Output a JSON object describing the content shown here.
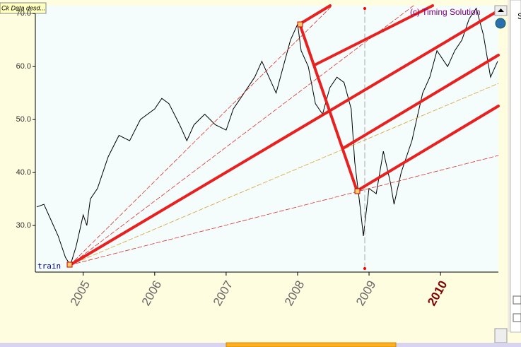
{
  "ui": {
    "tab": "Ck Data desd...",
    "side_letter": "S"
  },
  "chart_data": {
    "type": "line",
    "annotations": [
      "(c) Timing Solution",
      "train"
    ],
    "x": [
      2004.35,
      2004.45,
      2004.55,
      2004.65,
      2004.75,
      2004.82,
      2004.9,
      2004.95,
      2005.0,
      2005.05,
      2005.1,
      2005.2,
      2005.35,
      2005.5,
      2005.65,
      2005.8,
      2006.0,
      2006.1,
      2006.2,
      2006.35,
      2006.45,
      2006.55,
      2006.7,
      2006.85,
      2007.0,
      2007.1,
      2007.25,
      2007.4,
      2007.5,
      2007.6,
      2007.7,
      2007.8,
      2007.9,
      2008.0,
      2008.05,
      2008.15,
      2008.25,
      2008.35,
      2008.45,
      2008.55,
      2008.65,
      2008.75,
      2008.8,
      2008.88,
      2008.92,
      2009.0,
      2009.1,
      2009.2,
      2009.3,
      2009.35,
      2009.45,
      2009.55,
      2009.6,
      2009.65,
      2009.75,
      2009.85,
      2009.95,
      2010.1,
      2010.2,
      2010.3,
      2010.4,
      2010.5,
      2010.6,
      2010.7,
      2010.8
    ],
    "series": [
      {
        "color": "#000000",
        "values": [
          33.5,
          34,
          31,
          28,
          24,
          22.5,
          26,
          29,
          32,
          30,
          35,
          37,
          43,
          47,
          46,
          50,
          52,
          54,
          53,
          49,
          46,
          49,
          51,
          49,
          48,
          52,
          55,
          58,
          61,
          58,
          55,
          60,
          65,
          68,
          63,
          60,
          53,
          51,
          56,
          58,
          57,
          52,
          42,
          33,
          28,
          37,
          36,
          44,
          38,
          34,
          40,
          44,
          46,
          49,
          55,
          58,
          63,
          60,
          63,
          65,
          69,
          71,
          66,
          58,
          61
        ]
      }
    ],
    "xlim": [
      2004.33,
      2010.81
    ],
    "xticks": [
      2005,
      2006,
      2007,
      2008,
      2009,
      2010
    ],
    "ylim": [
      21.2,
      71.5
    ],
    "yticks": [
      {
        "value": 30,
        "label": "30.0"
      },
      {
        "value": 40,
        "label": "40.0"
      },
      {
        "value": 50,
        "label": "50.0"
      },
      {
        "value": 60,
        "label": "60.0"
      },
      {
        "value": 70,
        "label": "70.0"
      }
    ],
    "grid": false
  }
}
